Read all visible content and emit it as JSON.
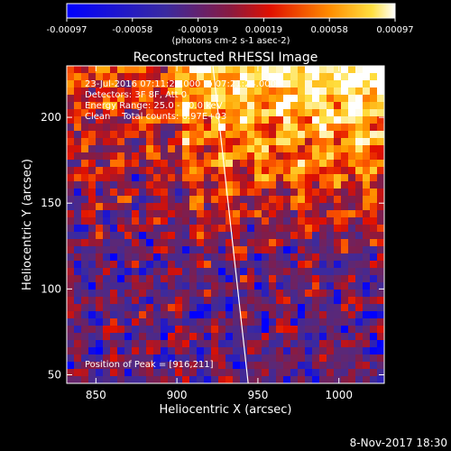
{
  "chart_data": {
    "type": "heatmap",
    "title": "Reconstructed RHESSI Image",
    "xlabel": "Heliocentric X (arcsec)",
    "ylabel": "Heliocentric Y (arcsec)",
    "xlim": [
      832,
      1028
    ],
    "ylim": [
      45,
      230
    ],
    "x_ticks": [
      850,
      900,
      950,
      1000
    ],
    "y_ticks": [
      50,
      100,
      150,
      200
    ],
    "colorbar": {
      "ticks": [
        "-0.00097",
        "-0.00058",
        "-0.00019",
        "0.00019",
        "0.00058",
        "0.00097"
      ],
      "range": [
        -0.00097,
        0.00097
      ],
      "unit_label": "(photons cm-2 s-1 asec-2)",
      "colors": [
        "#0000ff",
        "#5a2ea8",
        "#b01818",
        "#ff5000",
        "#ff9a00",
        "#ffffff"
      ]
    },
    "info_lines": [
      "23-Jul-2016 07:11:24.000 to 07:21:24.000",
      "Detectors: 3F 8F, Att 0",
      "Energy Range: 25.0 - 50.0 keV",
      "Clean    Total counts: 6.97E+03"
    ],
    "peak_label": "Position of Peak = [916,211]",
    "peak": [
      916,
      211
    ],
    "limb_line": {
      "x": [
        922,
        944
      ],
      "y": [
        232,
        45
      ]
    },
    "footer": "8-Nov-2017 18:30"
  }
}
